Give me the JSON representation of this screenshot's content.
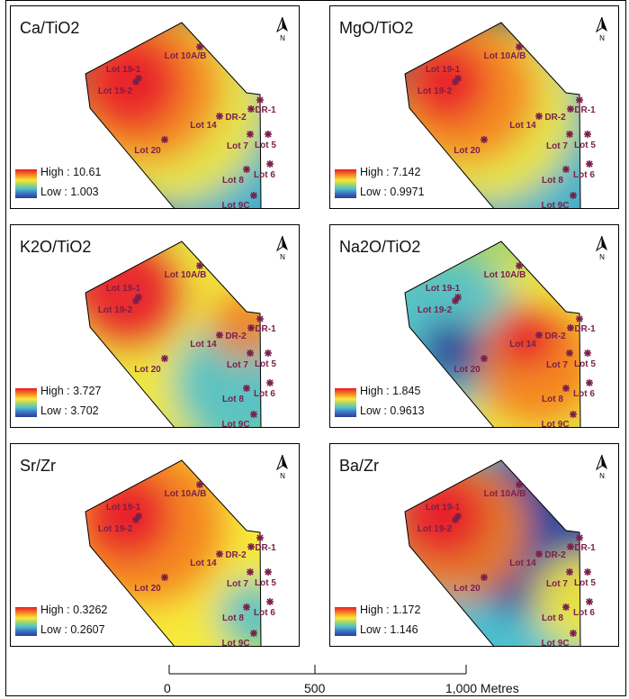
{
  "panels": [
    {
      "id": "ca",
      "title": "Ca/TiO2",
      "high": "High : 10.61",
      "low": "Low : 1.003"
    },
    {
      "id": "mg",
      "title": "MgO/TiO2",
      "high": "High : 7.142",
      "low": "Low : 0.9971"
    },
    {
      "id": "k",
      "title": "K2O/TiO2",
      "high": "High : 3.727",
      "low": "Low : 3.702"
    },
    {
      "id": "na",
      "title": "Na2O/TiO2",
      "high": "High : 1.845",
      "low": "Low : 0.9613"
    },
    {
      "id": "sr",
      "title": "Sr/Zr",
      "high": "High : 0.3262",
      "low": "Low : 0.2607"
    },
    {
      "id": "ba",
      "title": "Ba/Zr",
      "high": "High : 1.172",
      "low": "Low : 1.146"
    }
  ],
  "lots": [
    "Lot 10A/B",
    "Lot 19-1",
    "Lot 19-2",
    "DR-1",
    "DR-2",
    "Lot 14",
    "Lot 20",
    "Lot 7",
    "Lot 5",
    "Lot 6",
    "Lot 8",
    "Lot 9C"
  ],
  "north_label": "N",
  "scale": {
    "labels": [
      "0",
      "500",
      "1,000 Metres"
    ]
  },
  "colors": {
    "high": "#e8192c",
    "mid": "#f6e93c",
    "low": "#2b3e98",
    "marker": "#7a1f4a"
  }
}
